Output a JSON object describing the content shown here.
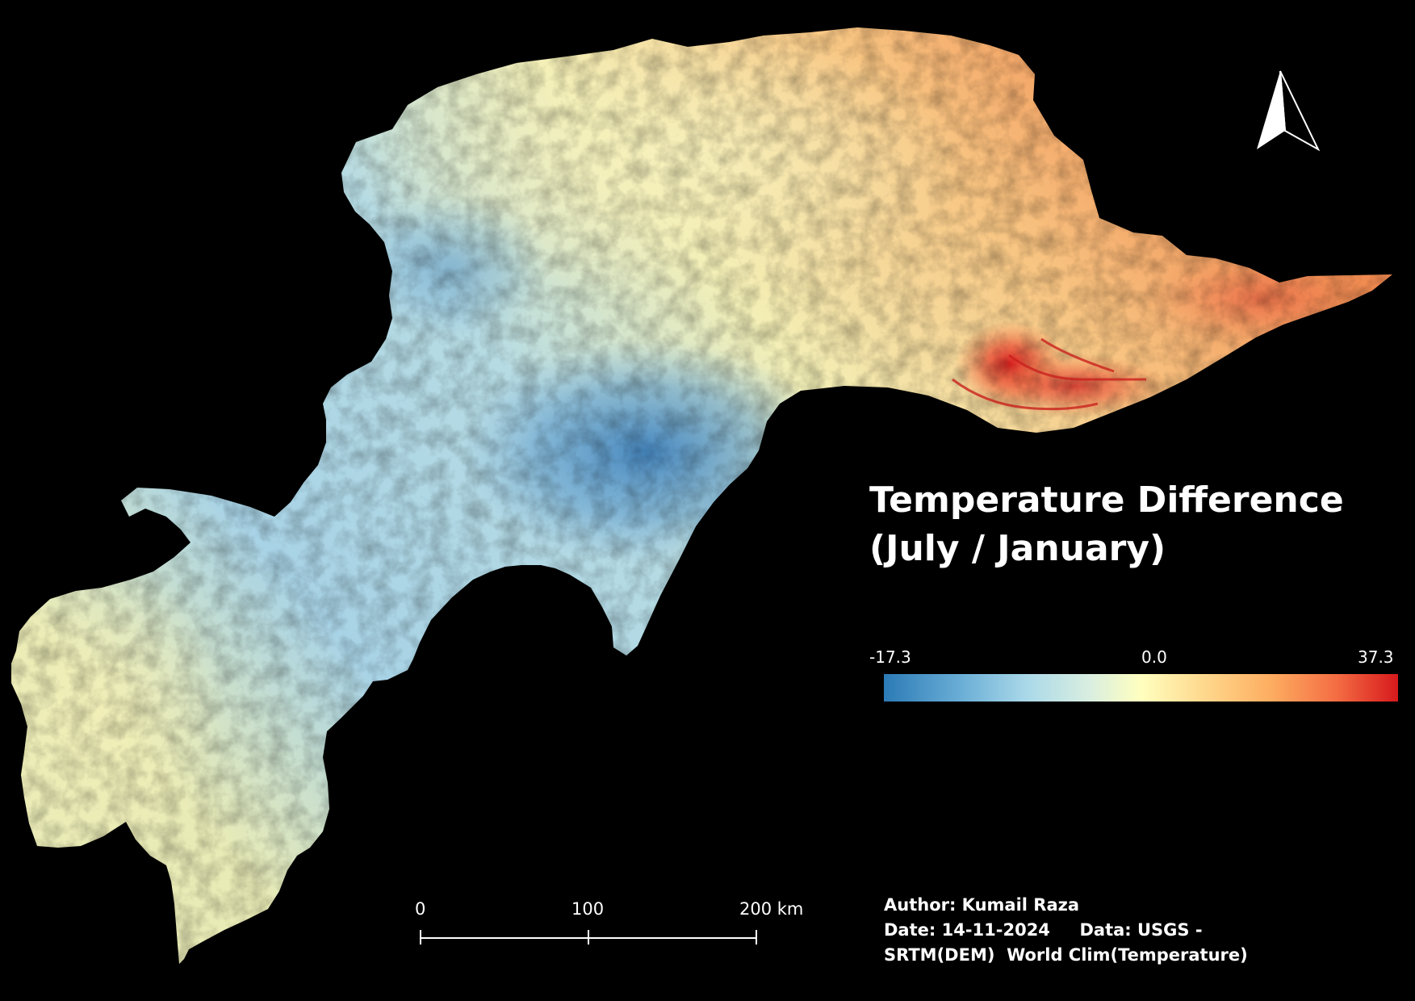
{
  "title": {
    "line1": "Temperature Difference",
    "line2": "(July / January)"
  },
  "legend": {
    "min_label": "-17.3",
    "mid_label": "0.0",
    "max_label": "37.3",
    "min_value": -17.3,
    "mid_value": 0.0,
    "max_value": 37.3,
    "colors": [
      "#2c7bb6",
      "#abd9e9",
      "#ffffbf",
      "#fdae61",
      "#d7191c"
    ]
  },
  "scale_bar": {
    "labels": [
      "0",
      "100",
      "200 km"
    ]
  },
  "credits": {
    "author": "Author: Kumail Raza",
    "date_data": "Date: 14-11-2024     Data: USGS -",
    "sources": "SRTM(DEM)  World Clim(Temperature)"
  },
  "north_arrow": {
    "icon": "north-arrow-icon"
  },
  "background_color": "#000000"
}
